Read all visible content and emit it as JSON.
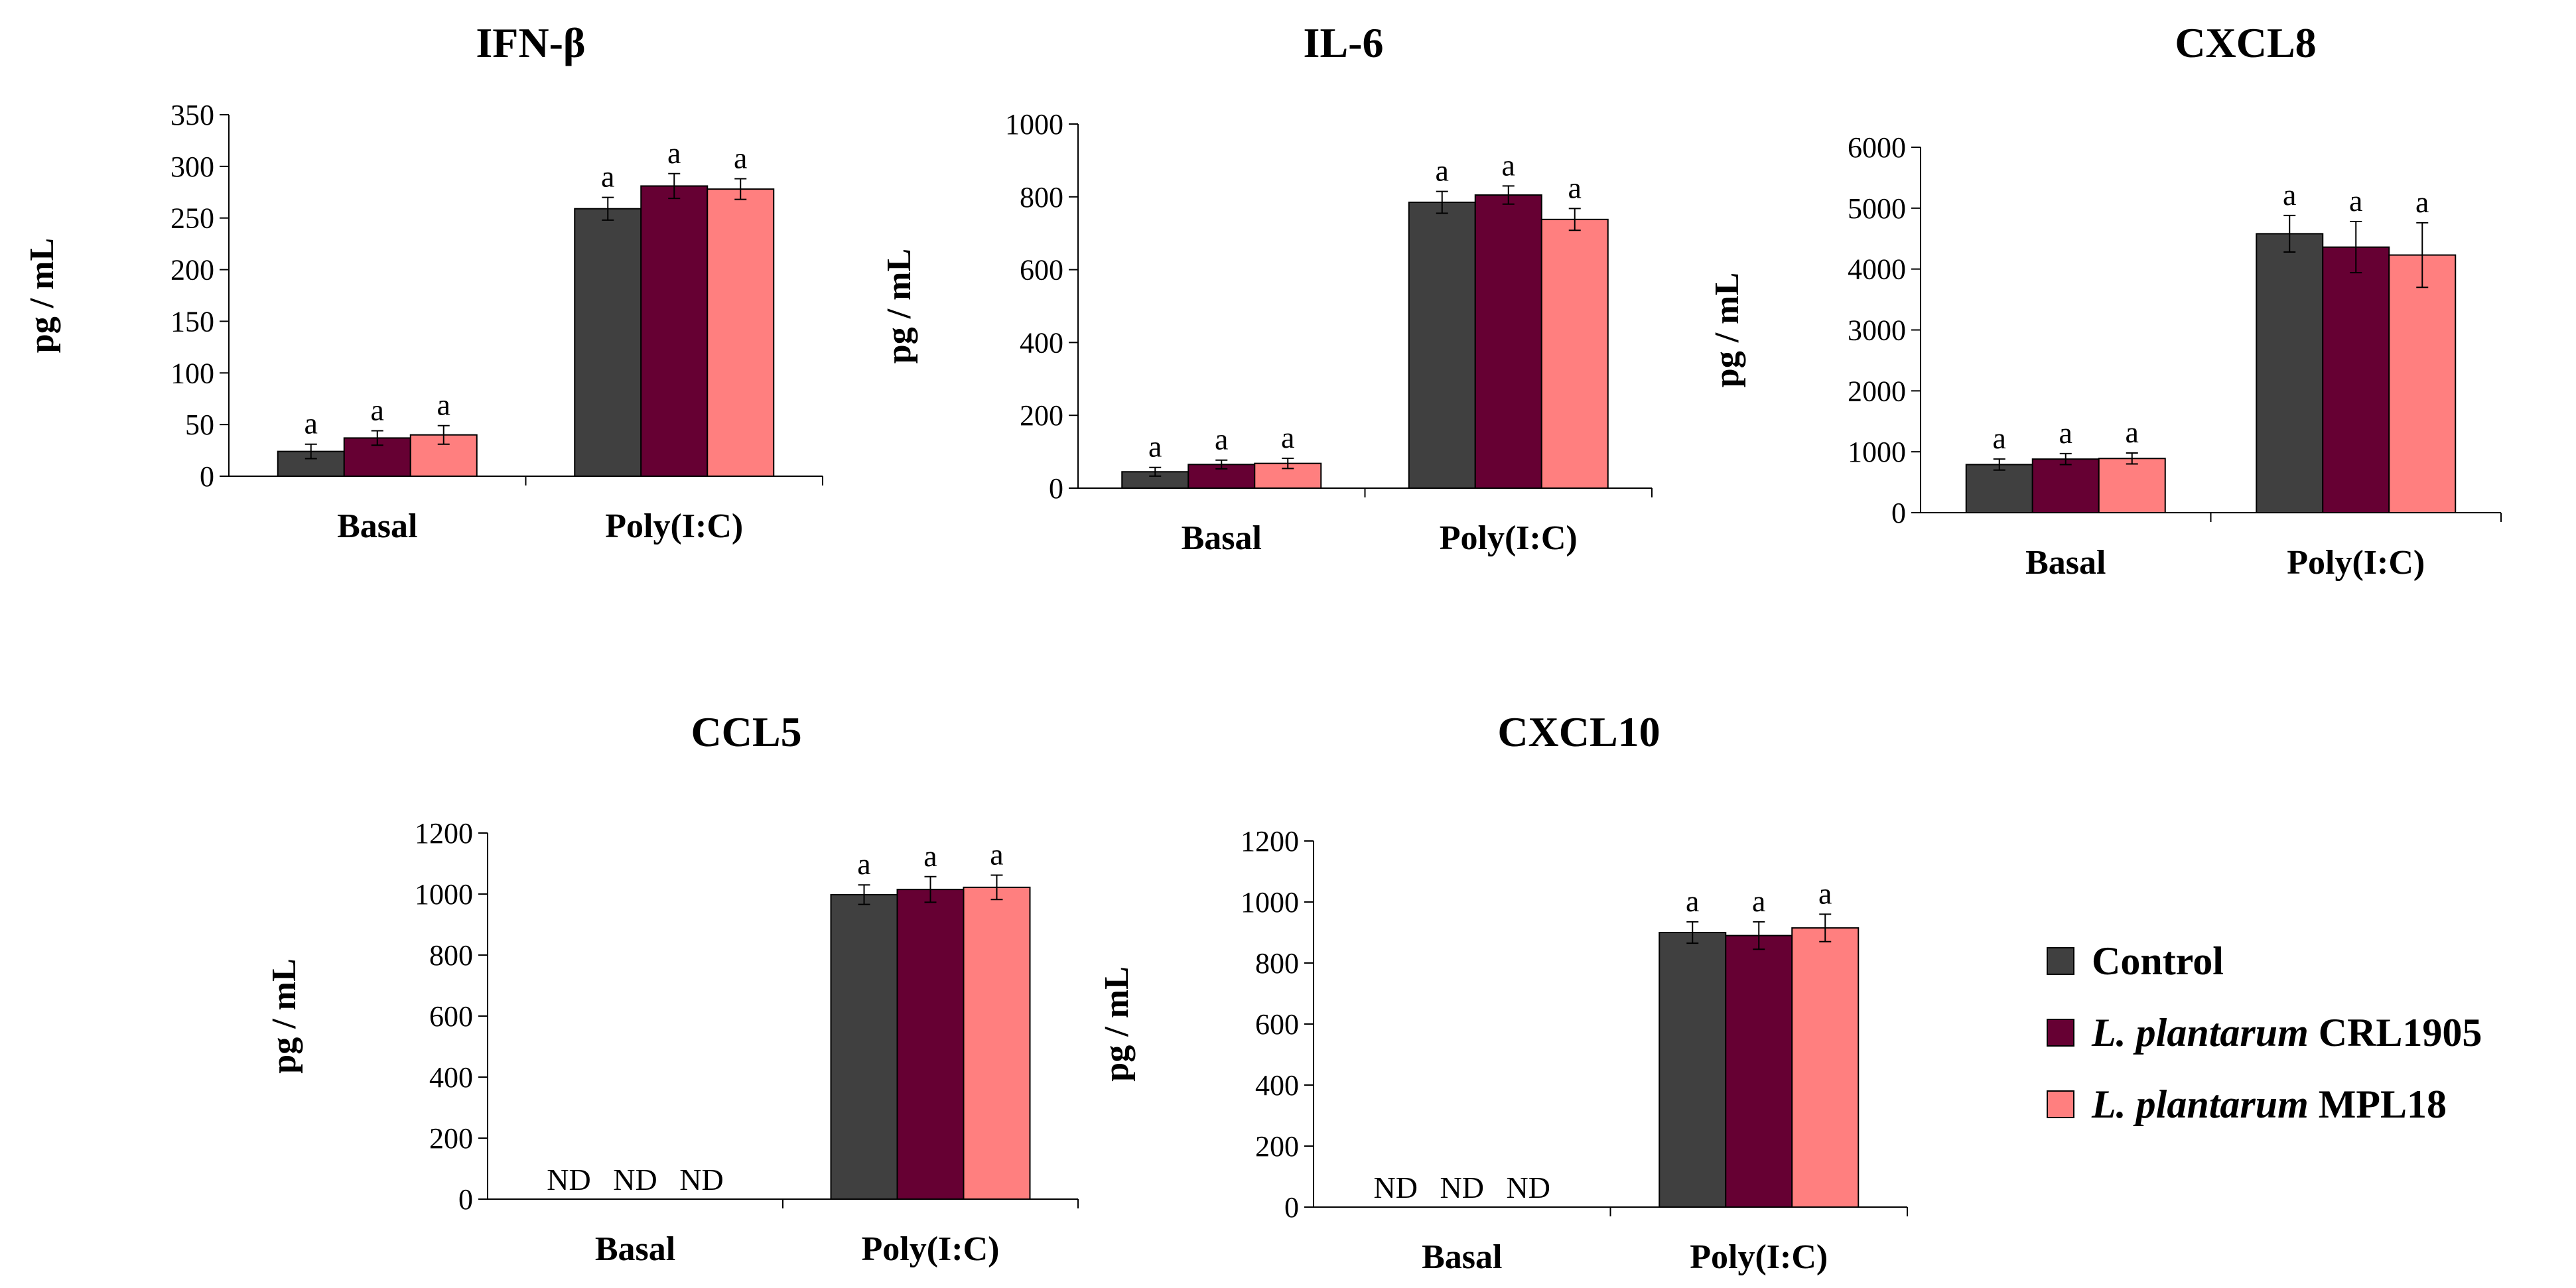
{
  "figure": {
    "legend": [
      {
        "name": "Control",
        "species": "",
        "strain": "",
        "color": "#404040"
      },
      {
        "name": "L. plantarum CRL1905",
        "species": "L. plantarum",
        "strain": "CRL1905",
        "color": "#660033"
      },
      {
        "name": "L. plantarum MPL18",
        "species": "L. plantarum",
        "strain": "MPL18",
        "color": "#FF7F7F"
      }
    ]
  },
  "chart_data": [
    {
      "type": "bar",
      "title": "IFN-β",
      "ylabel": "pg / mL",
      "xlabel": "",
      "categories": [
        "Basal",
        "Poly(I:C)"
      ],
      "ylim": [
        0,
        350
      ],
      "yticks": [
        "0",
        "50",
        "100",
        "150",
        "200",
        "250",
        "300",
        "350"
      ],
      "series": [
        {
          "name": "Control",
          "values": [
            24,
            259
          ],
          "errors": [
            7,
            11
          ],
          "labels": [
            "a",
            "a"
          ]
        },
        {
          "name": "L. plantarum CRL1905",
          "values": [
            37,
            281
          ],
          "errors": [
            7,
            12
          ],
          "labels": [
            "a",
            "a"
          ]
        },
        {
          "name": "L. plantarum MPL18",
          "values": [
            40,
            278
          ],
          "errors": [
            9,
            10
          ],
          "labels": [
            "a",
            "a"
          ]
        }
      ]
    },
    {
      "type": "bar",
      "title": "IL-6",
      "ylabel": "pg / mL",
      "xlabel": "",
      "categories": [
        "Basal",
        "Poly(I:C)"
      ],
      "ylim": [
        0,
        1000
      ],
      "yticks": [
        "0",
        "200",
        "400",
        "600",
        "800",
        "1000"
      ],
      "series": [
        {
          "name": "Control",
          "values": [
            45,
            785
          ],
          "errors": [
            12,
            30
          ],
          "labels": [
            "a",
            "a"
          ]
        },
        {
          "name": "L. plantarum CRL1905",
          "values": [
            65,
            805
          ],
          "errors": [
            12,
            25
          ],
          "labels": [
            "a",
            "a"
          ]
        },
        {
          "name": "L. plantarum MPL18",
          "values": [
            68,
            738
          ],
          "errors": [
            14,
            30
          ],
          "labels": [
            "a",
            "a"
          ]
        }
      ]
    },
    {
      "type": "bar",
      "title": "CXCL8",
      "ylabel": "pg / mL",
      "xlabel": "",
      "categories": [
        "Basal",
        "Poly(I:C)"
      ],
      "ylim": [
        0,
        6000
      ],
      "yticks": [
        "0",
        "1000",
        "2000",
        "3000",
        "4000",
        "5000",
        "6000"
      ],
      "series": [
        {
          "name": "Control",
          "values": [
            790,
            4580
          ],
          "errors": [
            90,
            300
          ],
          "labels": [
            "a",
            "a"
          ]
        },
        {
          "name": "L. plantarum CRL1905",
          "values": [
            880,
            4360
          ],
          "errors": [
            90,
            420
          ],
          "labels": [
            "a",
            "a"
          ]
        },
        {
          "name": "L. plantarum MPL18",
          "values": [
            890,
            4230
          ],
          "errors": [
            90,
            530
          ],
          "labels": [
            "a",
            "a"
          ]
        }
      ]
    },
    {
      "type": "bar",
      "title": "CCL5",
      "ylabel": "pg / mL",
      "xlabel": "",
      "categories": [
        "Basal",
        "Poly(I:C)"
      ],
      "ylim": [
        0,
        1200
      ],
      "yticks": [
        "0",
        "200",
        "400",
        "600",
        "800",
        "1000",
        "1200"
      ],
      "series": [
        {
          "name": "Control",
          "values": [
            null,
            998
          ],
          "errors": [
            null,
            32
          ],
          "labels": [
            "ND",
            "a"
          ]
        },
        {
          "name": "L. plantarum CRL1905",
          "values": [
            null,
            1015
          ],
          "errors": [
            null,
            42
          ],
          "labels": [
            "ND",
            "a"
          ]
        },
        {
          "name": "L. plantarum MPL18",
          "values": [
            null,
            1022
          ],
          "errors": [
            null,
            40
          ],
          "labels": [
            "ND",
            "a"
          ]
        }
      ]
    },
    {
      "type": "bar",
      "title": "CXCL10",
      "ylabel": "pg / mL",
      "xlabel": "",
      "categories": [
        "Basal",
        "Poly(I:C)"
      ],
      "ylim": [
        0,
        1200
      ],
      "yticks": [
        "0",
        "200",
        "400",
        "600",
        "800",
        "1000",
        "1200"
      ],
      "series": [
        {
          "name": "Control",
          "values": [
            null,
            900
          ],
          "errors": [
            null,
            35
          ],
          "labels": [
            "ND",
            "a"
          ]
        },
        {
          "name": "L. plantarum CRL1905",
          "values": [
            null,
            890
          ],
          "errors": [
            null,
            45
          ],
          "labels": [
            "ND",
            "a"
          ]
        },
        {
          "name": "L. plantarum MPL18",
          "values": [
            null,
            915
          ],
          "errors": [
            null,
            45
          ],
          "labels": [
            "ND",
            "a"
          ]
        }
      ]
    }
  ]
}
